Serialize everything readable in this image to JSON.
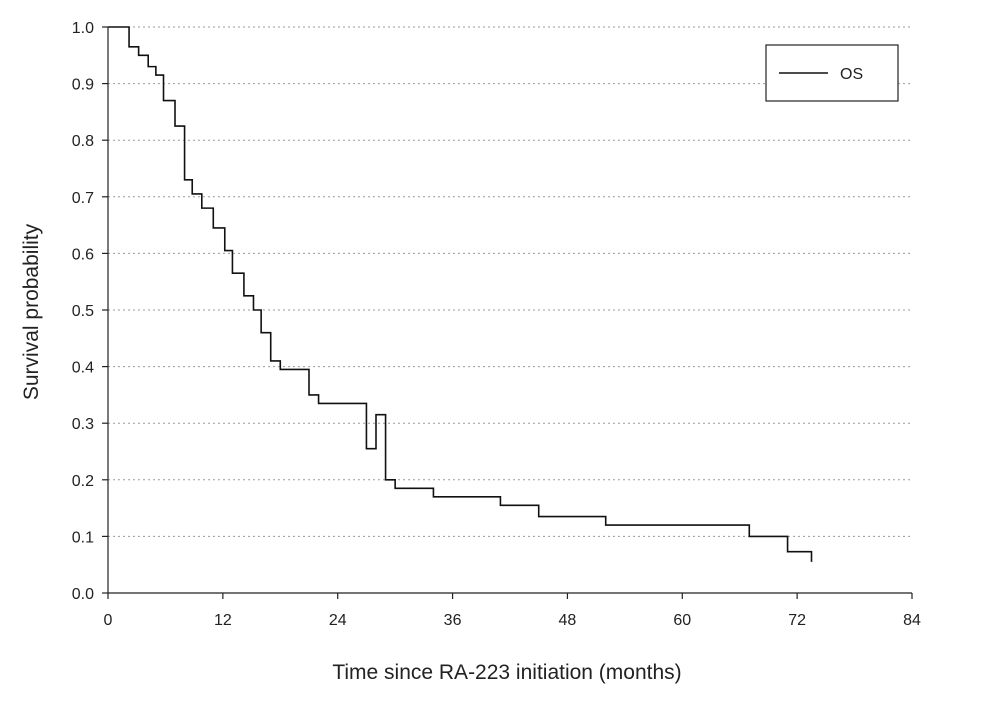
{
  "chart_data": {
    "type": "line",
    "title": "",
    "xlabel": "Time since RA-223 initiation (months)",
    "ylabel": "Survival probability",
    "xlim": [
      0,
      84
    ],
    "ylim": [
      0,
      1
    ],
    "x_ticks": [
      0,
      12,
      24,
      36,
      48,
      60,
      72,
      84
    ],
    "y_ticks": [
      "0.0",
      "0.1",
      "0.2",
      "0.3",
      "0.4",
      "0.5",
      "0.6",
      "0.7",
      "0.8",
      "0.9",
      "1.0"
    ],
    "grid": "horizontal dotted",
    "legend_position": "top-right",
    "series": [
      {
        "name": "OS",
        "step": true,
        "color": "#111111",
        "points": [
          [
            0,
            1.0
          ],
          [
            2.2,
            0.965
          ],
          [
            3.2,
            0.95
          ],
          [
            4.2,
            0.93
          ],
          [
            5.0,
            0.915
          ],
          [
            5.8,
            0.87
          ],
          [
            7.0,
            0.825
          ],
          [
            8.0,
            0.73
          ],
          [
            8.8,
            0.705
          ],
          [
            9.8,
            0.68
          ],
          [
            11.0,
            0.645
          ],
          [
            12.2,
            0.605
          ],
          [
            13.0,
            0.565
          ],
          [
            14.2,
            0.525
          ],
          [
            15.2,
            0.5
          ],
          [
            16.0,
            0.46
          ],
          [
            17.0,
            0.41
          ],
          [
            18.0,
            0.395
          ],
          [
            21.0,
            0.35
          ],
          [
            22.0,
            0.335
          ],
          [
            28.0,
            0.315
          ],
          [
            27.0,
            0.255
          ],
          [
            29.0,
            0.2
          ],
          [
            30.0,
            0.185
          ],
          [
            34.0,
            0.17
          ],
          [
            41.0,
            0.155
          ],
          [
            45.0,
            0.135
          ],
          [
            52.0,
            0.12
          ],
          [
            67.0,
            0.1
          ],
          [
            71.0,
            0.073
          ],
          [
            73.5,
            0.055
          ]
        ],
        "end_x": 73.5
      }
    ]
  }
}
